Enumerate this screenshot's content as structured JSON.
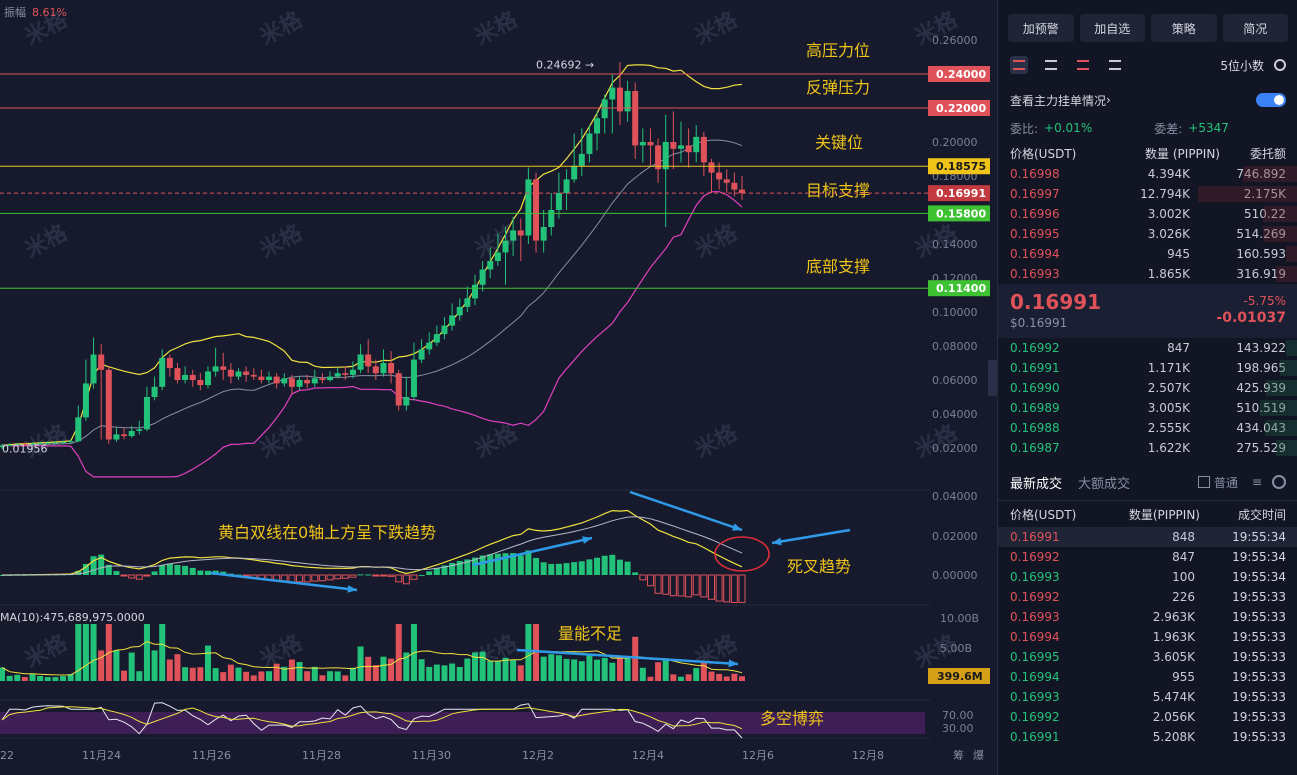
{
  "colors": {
    "up": "#23c27a",
    "down": "#e0525a",
    "bg": "#161a2c",
    "gold": "#f0c419",
    "accent": "#3b82f6"
  },
  "chart_header": {
    "label": "振幅",
    "value": "8.61%"
  },
  "chart_data": {
    "type": "candlestick",
    "x_ticks": [
      "22",
      "11月24",
      "11月26",
      "11月28",
      "11月30",
      "12月2",
      "12月4",
      "12月6",
      "12月8"
    ],
    "y_ticks": [
      "0.26000",
      "0.24000",
      "0.22000",
      "0.20000",
      "0.18000",
      "0.16000",
      "0.14000",
      "0.12000",
      "0.10000",
      "0.08000",
      "0.06000",
      "0.04000",
      "0.02000"
    ],
    "ylim": [
      0.0,
      0.265
    ],
    "current_price_tag": "0.16991",
    "high_marker": "0.24692 →",
    "low_marker": "0.01956",
    "levels": [
      {
        "price": 0.24,
        "tag": "0.24000",
        "label": "高压力位",
        "color": "#e0525a"
      },
      {
        "price": 0.22,
        "tag": "0.22000",
        "label": "反弹压力",
        "color": "#e0525a"
      },
      {
        "price": 0.18575,
        "tag": "0.18575",
        "label": "关键位",
        "color": "#f0c419"
      },
      {
        "price": 0.158,
        "tag": "0.15800",
        "label": "目标支撑",
        "color": "#3ec234"
      },
      {
        "price": 0.114,
        "tag": "0.11400",
        "label": "底部支撑",
        "color": "#3ec234"
      }
    ],
    "candles": [
      [
        0.0205,
        0.0215,
        0.0225,
        0.0195
      ],
      [
        0.0215,
        0.0218,
        0.0228,
        0.021
      ],
      [
        0.0218,
        0.0222,
        0.023,
        0.0212
      ],
      [
        0.0222,
        0.022,
        0.0232,
        0.0214
      ],
      [
        0.022,
        0.0225,
        0.0234,
        0.0214
      ],
      [
        0.0225,
        0.0228,
        0.0238,
        0.0218
      ],
      [
        0.0228,
        0.023,
        0.024,
        0.022
      ],
      [
        0.023,
        0.0232,
        0.0242,
        0.0224
      ],
      [
        0.0232,
        0.0235,
        0.0244,
        0.0226
      ],
      [
        0.0235,
        0.024,
        0.025,
        0.0228
      ],
      [
        0.024,
        0.038,
        0.045,
        0.0235
      ],
      [
        0.038,
        0.058,
        0.072,
        0.036
      ],
      [
        0.058,
        0.075,
        0.085,
        0.055
      ],
      [
        0.075,
        0.066,
        0.081,
        0.025
      ],
      [
        0.066,
        0.025,
        0.068,
        0.0225
      ],
      [
        0.025,
        0.028,
        0.032,
        0.0235
      ],
      [
        0.028,
        0.027,
        0.032,
        0.025
      ],
      [
        0.027,
        0.03,
        0.033,
        0.026
      ],
      [
        0.03,
        0.031,
        0.036,
        0.028
      ],
      [
        0.031,
        0.05,
        0.056,
        0.03
      ],
      [
        0.05,
        0.056,
        0.062,
        0.048
      ],
      [
        0.056,
        0.073,
        0.078,
        0.054
      ],
      [
        0.073,
        0.067,
        0.075,
        0.062
      ],
      [
        0.067,
        0.06,
        0.07,
        0.058
      ],
      [
        0.06,
        0.063,
        0.068,
        0.058
      ],
      [
        0.063,
        0.06,
        0.066,
        0.056
      ],
      [
        0.06,
        0.057,
        0.064,
        0.054
      ],
      [
        0.057,
        0.065,
        0.068,
        0.055
      ],
      [
        0.065,
        0.068,
        0.079,
        0.062
      ],
      [
        0.068,
        0.066,
        0.076,
        0.06
      ],
      [
        0.066,
        0.062,
        0.07,
        0.058
      ],
      [
        0.062,
        0.065,
        0.067,
        0.06
      ],
      [
        0.065,
        0.063,
        0.068,
        0.059
      ],
      [
        0.063,
        0.062,
        0.067,
        0.06
      ],
      [
        0.062,
        0.06,
        0.066,
        0.058
      ],
      [
        0.06,
        0.062,
        0.065,
        0.058
      ],
      [
        0.062,
        0.058,
        0.064,
        0.055
      ],
      [
        0.058,
        0.061,
        0.064,
        0.056
      ],
      [
        0.061,
        0.056,
        0.063,
        0.052
      ],
      [
        0.056,
        0.06,
        0.062,
        0.054
      ],
      [
        0.06,
        0.058,
        0.063,
        0.055
      ],
      [
        0.058,
        0.061,
        0.066,
        0.056
      ],
      [
        0.061,
        0.06,
        0.064,
        0.058
      ],
      [
        0.06,
        0.062,
        0.065,
        0.059
      ],
      [
        0.062,
        0.064,
        0.067,
        0.061
      ],
      [
        0.064,
        0.063,
        0.068,
        0.06
      ],
      [
        0.063,
        0.066,
        0.071,
        0.061
      ],
      [
        0.066,
        0.075,
        0.081,
        0.064
      ],
      [
        0.075,
        0.068,
        0.084,
        0.064
      ],
      [
        0.068,
        0.064,
        0.072,
        0.06
      ],
      [
        0.064,
        0.07,
        0.078,
        0.062
      ],
      [
        0.07,
        0.064,
        0.077,
        0.058
      ],
      [
        0.064,
        0.045,
        0.066,
        0.042
      ],
      [
        0.045,
        0.05,
        0.062,
        0.042
      ],
      [
        0.05,
        0.072,
        0.082,
        0.048
      ],
      [
        0.072,
        0.078,
        0.084,
        0.07
      ],
      [
        0.078,
        0.082,
        0.088,
        0.075
      ],
      [
        0.082,
        0.087,
        0.092,
        0.08
      ],
      [
        0.087,
        0.092,
        0.097,
        0.084
      ],
      [
        0.092,
        0.098,
        0.105,
        0.089
      ],
      [
        0.098,
        0.103,
        0.108,
        0.095
      ],
      [
        0.103,
        0.108,
        0.115,
        0.1
      ],
      [
        0.108,
        0.116,
        0.122,
        0.104
      ],
      [
        0.116,
        0.125,
        0.13,
        0.112
      ],
      [
        0.125,
        0.13,
        0.138,
        0.12
      ],
      [
        0.13,
        0.135,
        0.146,
        0.127
      ],
      [
        0.135,
        0.142,
        0.15,
        0.116
      ],
      [
        0.142,
        0.148,
        0.156,
        0.133
      ],
      [
        0.148,
        0.145,
        0.155,
        0.13
      ],
      [
        0.145,
        0.178,
        0.185,
        0.14
      ],
      [
        0.178,
        0.142,
        0.182,
        0.135
      ],
      [
        0.142,
        0.15,
        0.16,
        0.135
      ],
      [
        0.15,
        0.16,
        0.17,
        0.145
      ],
      [
        0.16,
        0.17,
        0.182,
        0.155
      ],
      [
        0.17,
        0.178,
        0.184,
        0.16
      ],
      [
        0.178,
        0.186,
        0.205,
        0.176
      ],
      [
        0.186,
        0.193,
        0.208,
        0.18
      ],
      [
        0.193,
        0.205,
        0.21,
        0.188
      ],
      [
        0.205,
        0.214,
        0.218,
        0.195
      ],
      [
        0.214,
        0.225,
        0.228,
        0.205
      ],
      [
        0.225,
        0.232,
        0.24,
        0.205
      ],
      [
        0.232,
        0.218,
        0.2469,
        0.21
      ],
      [
        0.218,
        0.23,
        0.236,
        0.212
      ],
      [
        0.23,
        0.198,
        0.235,
        0.19
      ],
      [
        0.198,
        0.2,
        0.208,
        0.188
      ],
      [
        0.2,
        0.198,
        0.208,
        0.186
      ],
      [
        0.198,
        0.184,
        0.202,
        0.176
      ],
      [
        0.184,
        0.2,
        0.216,
        0.15
      ],
      [
        0.2,
        0.196,
        0.218,
        0.184
      ],
      [
        0.196,
        0.198,
        0.212,
        0.188
      ],
      [
        0.198,
        0.194,
        0.208,
        0.185
      ],
      [
        0.194,
        0.203,
        0.21,
        0.188
      ],
      [
        0.203,
        0.188,
        0.206,
        0.18
      ],
      [
        0.188,
        0.182,
        0.19,
        0.17
      ],
      [
        0.182,
        0.178,
        0.188,
        0.172
      ],
      [
        0.178,
        0.176,
        0.184,
        0.17
      ],
      [
        0.176,
        0.172,
        0.182,
        0.168
      ],
      [
        0.172,
        0.16991,
        0.18,
        0.166
      ]
    ],
    "macd_label": "黄白双线在0轴上方呈下跌趋势",
    "macd_cross_label": "死叉趋势",
    "macd_y_ticks": [
      "0.04000",
      "0.02000",
      "0.00000"
    ],
    "volume_label": "MA(10):475,689,975.0000",
    "volume_note": "量能不足",
    "volume_y_ticks": [
      "10.00B",
      "5.00B"
    ],
    "volume_tag": "399.6M",
    "rsi_label": "多空博弈",
    "rsi_y_ticks": [
      "70.00",
      "30.00"
    ],
    "axis_right_btns": [
      "筹",
      "爆"
    ]
  },
  "watermark": "米格",
  "side": {
    "buttons": [
      "加预警",
      "加自选",
      "策略",
      "简况"
    ],
    "precision": "5位小数",
    "toggle_label": "查看主力挂单情况",
    "ratio_label": "委比:",
    "ratio_value": "+0.01%",
    "diff_label": "委差:",
    "diff_value": "+5347",
    "book_header": [
      "价格(USDT)",
      "数量 (PIPPIN)",
      "委托额"
    ],
    "asks": [
      [
        "0.16998",
        "4.394K",
        "746.892",
        0.55
      ],
      [
        "0.16997",
        "12.794K",
        "2.175K",
        1.0
      ],
      [
        "0.16996",
        "3.002K",
        "510.22",
        0.35
      ],
      [
        "0.16995",
        "3.026K",
        "514.269",
        0.35
      ],
      [
        "0.16994",
        "945",
        "160.593",
        0.12
      ],
      [
        "0.16993",
        "1.865K",
        "316.919",
        0.22
      ]
    ],
    "mid_price": "0.16991",
    "mid_sub": "$0.16991",
    "mid_change_pct": "-5.75%",
    "mid_change_abs": "-0.01037",
    "bids": [
      [
        "0.16992",
        "847",
        "143.922",
        0.12
      ],
      [
        "0.16991",
        "1.171K",
        "198.965",
        0.18
      ],
      [
        "0.16990",
        "2.507K",
        "425.939",
        0.32
      ],
      [
        "0.16989",
        "3.005K",
        "510.519",
        0.38
      ],
      [
        "0.16988",
        "2.555K",
        "434.043",
        0.33
      ],
      [
        "0.16987",
        "1.622K",
        "275.529",
        0.22
      ]
    ],
    "trades_tabs": [
      "最新成交",
      "大额成交"
    ],
    "trades_option": "普通",
    "trades_header": [
      "价格(USDT)",
      "数量(PIPPIN)",
      "成交时间"
    ],
    "trades": [
      [
        "0.16991",
        "848",
        "19:55:34",
        "red"
      ],
      [
        "0.16992",
        "847",
        "19:55:34",
        "red"
      ],
      [
        "0.16993",
        "100",
        "19:55:34",
        "green"
      ],
      [
        "0.16992",
        "226",
        "19:55:33",
        "red"
      ],
      [
        "0.16993",
        "2.963K",
        "19:55:33",
        "red"
      ],
      [
        "0.16994",
        "1.963K",
        "19:55:33",
        "red"
      ],
      [
        "0.16995",
        "3.605K",
        "19:55:33",
        "green"
      ],
      [
        "0.16994",
        "955",
        "19:55:33",
        "green"
      ],
      [
        "0.16993",
        "5.474K",
        "19:55:33",
        "green"
      ],
      [
        "0.16992",
        "2.056K",
        "19:55:33",
        "green"
      ],
      [
        "0.16991",
        "5.208K",
        "19:55:33",
        "green"
      ]
    ]
  }
}
